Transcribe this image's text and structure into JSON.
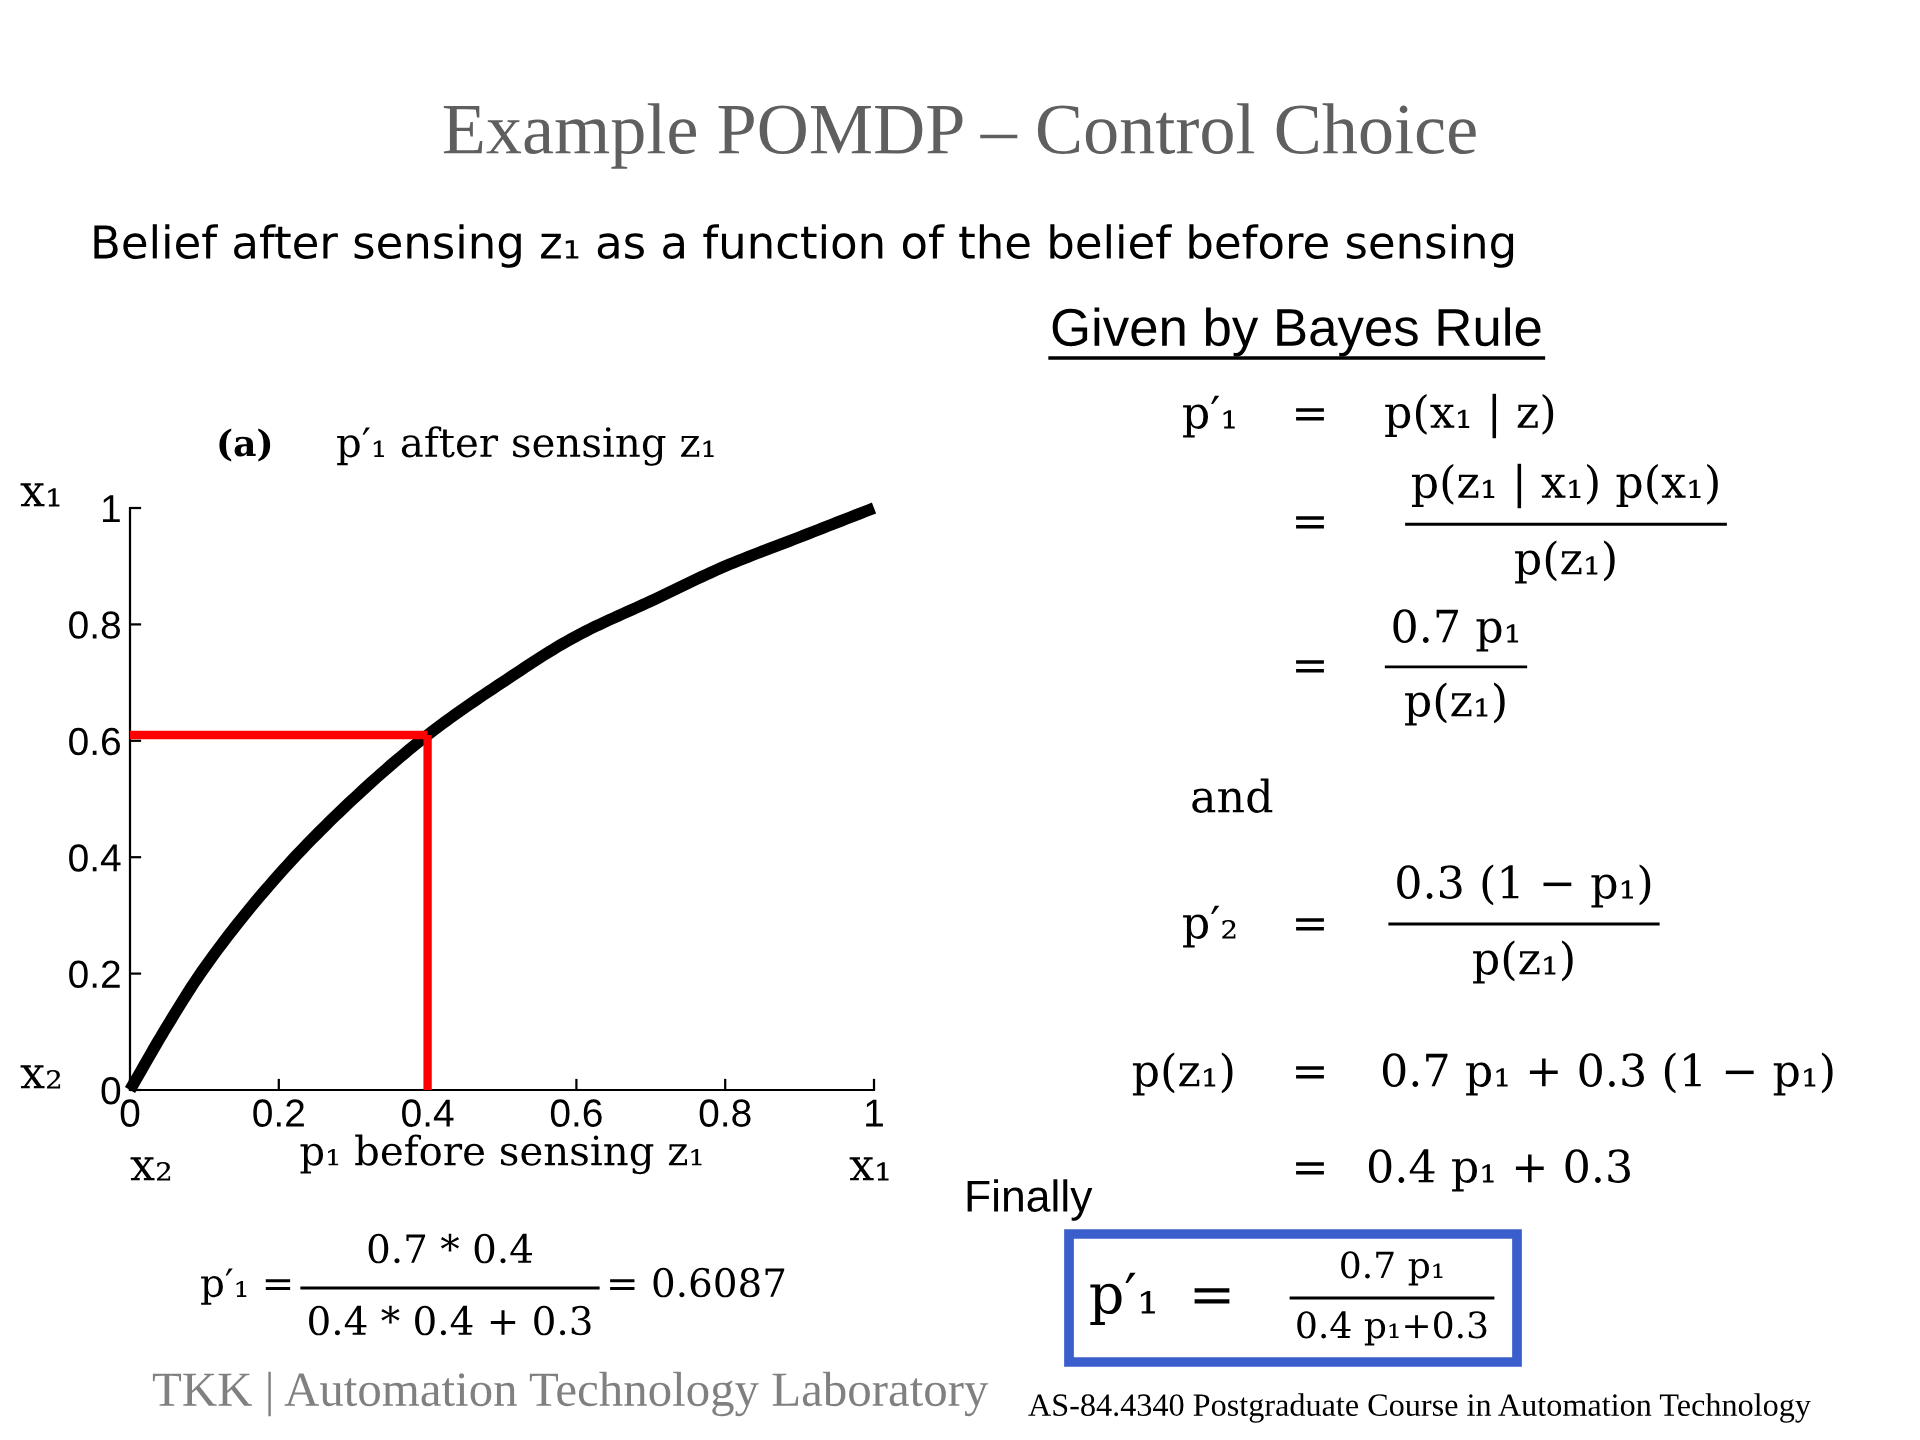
{
  "chart_data": {
    "type": "line",
    "title": "Example POMDP – Control Choice",
    "subtitle": "Belief after sensing z₁ as a function of the belief before sensing",
    "xlabel": "p₁ before sensing z₁",
    "x": [
      0,
      0.05,
      0.1,
      0.2,
      0.3,
      0.4,
      0.5,
      0.6,
      0.7,
      0.8,
      0.9,
      1
    ],
    "series": [
      {
        "color": "#000000",
        "values": [
          0,
          0.11,
          0.21,
          0.37,
          0.5,
          0.61,
          0.7,
          0.78,
          0.84,
          0.9,
          0.95,
          1
        ]
      }
    ],
    "ref_lines": [
      {
        "axis": "y",
        "value": 0.61,
        "color": "#ff0000"
      },
      {
        "axis": "x",
        "value": 0.4,
        "color": "#ff0000"
      }
    ],
    "xlim": [
      0,
      1
    ],
    "ylim": [
      0,
      1
    ],
    "xticks": [
      0,
      0.2,
      0.4,
      0.6,
      0.8,
      1
    ],
    "yticks": [
      0,
      0.2,
      0.4,
      0.6,
      0.8,
      1
    ],
    "line_style": "solid",
    "annotations": [
      "(a)",
      "p′₁ after sensing z₁",
      "x₁",
      "x₂",
      "x₂",
      "x₁",
      "Given by Bayes Rule",
      "p′₁",
      "=",
      "p(x₁ | z)",
      "=",
      "p(z₁ | x₁) p(x₁)",
      "p(z₁)",
      "=",
      "0.7 p₁",
      "p(z₁)",
      "and",
      "p′₂",
      "=",
      "0.3 (1 − p₁)",
      "p(z₁)",
      "p(z₁)",
      "=",
      "0.7 p₁ + 0.3 (1 − p₁)",
      "=",
      "0.4 p₁ + 0.3",
      "Finally",
      "p′₁",
      "=",
      "0.7 p₁",
      "0.4 p₁+0.3",
      "p′₁ =",
      "0.7 * 0.4",
      "0.4 * 0.4 + 0.3",
      "= 0.6087",
      "TKK | Automation Technology Laboratory",
      "AS-84.4340 Postgraduate Course in Automation Technology"
    ]
  }
}
